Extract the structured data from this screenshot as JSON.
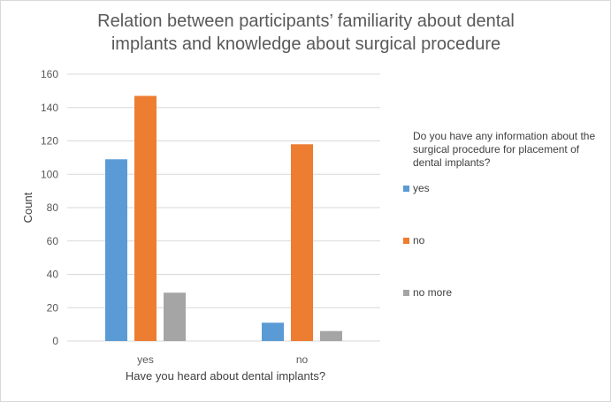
{
  "chart_data": {
    "type": "bar",
    "title": "Relation between participants’ familiarity about dental implants and knowledge about surgical procedure",
    "title_lines": [
      "Relation between participants’ familiarity about dental",
      "implants and knowledge about surgical procedure"
    ],
    "xlabel": "Have you heard about dental implants?",
    "ylabel": "Count",
    "categories": [
      "yes",
      "no"
    ],
    "ylim": [
      0,
      160
    ],
    "yticks": [
      0,
      20,
      40,
      60,
      80,
      100,
      120,
      140,
      160
    ],
    "grid": true,
    "legend_title": "Do you have any information about the surgical procedure for placement of dental implants?",
    "legend_position": "right",
    "series": [
      {
        "name": "yes",
        "color": "#5b9bd5",
        "values": [
          109,
          11
        ]
      },
      {
        "name": "no",
        "color": "#ed7d31",
        "values": [
          147,
          118
        ]
      },
      {
        "name": "no more",
        "color": "#a5a5a5",
        "values": [
          29,
          6
        ]
      }
    ]
  }
}
